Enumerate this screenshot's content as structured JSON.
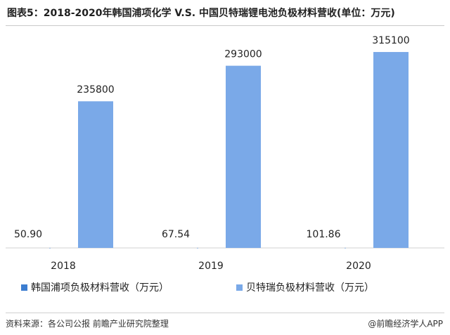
{
  "title": "图表5：2018-2020年韩国浦项化学 V.S. 中国贝特瑞锂电池负极材料营收(单位：万元)",
  "source": "资料来源：各公司公报 前瞻产业研究院整理",
  "credit": "@前瞻经济学人APP",
  "colors": {
    "series1": "#3c7dd0",
    "series2": "#7aa9e8",
    "axis": "#d0d0d0"
  },
  "chart_data": {
    "type": "bar",
    "categories": [
      "2018",
      "2019",
      "2020"
    ],
    "series": [
      {
        "name": "韩国浦项负极材料营收（万元）",
        "values": [
          50.9,
          67.54,
          101.86
        ],
        "labels": [
          "50.90",
          "67.54",
          "101.86"
        ]
      },
      {
        "name": "贝特瑞负极材料营收（万元）",
        "values": [
          235800,
          293000,
          315100
        ],
        "labels": [
          "235800",
          "293000",
          "315100"
        ]
      }
    ],
    "ylim": [
      0,
      340000
    ],
    "grid": false,
    "legend": "bottom"
  }
}
